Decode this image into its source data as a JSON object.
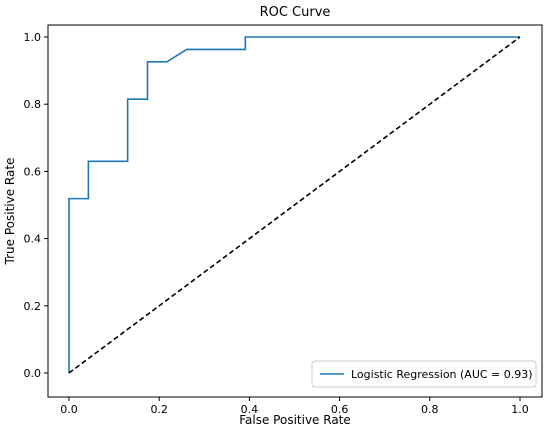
{
  "chart_data": {
    "type": "line",
    "title": "ROC Curve",
    "xlabel": "False Positive Rate",
    "ylabel": "True Positive Rate",
    "xlim": [
      0,
      1
    ],
    "ylim": [
      0,
      1
    ],
    "x_ticks": [
      "0.0",
      "0.2",
      "0.4",
      "0.6",
      "0.8",
      "1.0"
    ],
    "y_ticks": [
      "0.0",
      "0.2",
      "0.4",
      "0.6",
      "0.8",
      "1.0"
    ],
    "grid": false,
    "legend_position": "lower-right",
    "series": [
      {
        "name": "Logistic Regression (AUC = 0.93)",
        "color": "#1f77b4",
        "style": "solid",
        "x": [
          0.0,
          0.0,
          0.043,
          0.043,
          0.13,
          0.13,
          0.174,
          0.174,
          0.217,
          0.261,
          0.391,
          0.391,
          1.0
        ],
        "y": [
          0.0,
          0.519,
          0.519,
          0.63,
          0.63,
          0.815,
          0.815,
          0.926,
          0.926,
          0.963,
          0.963,
          1.0,
          1.0
        ]
      },
      {
        "name": "",
        "color": "#000000",
        "style": "dashed",
        "x": [
          0.0,
          1.0
        ],
        "y": [
          0.0,
          1.0
        ]
      }
    ]
  }
}
